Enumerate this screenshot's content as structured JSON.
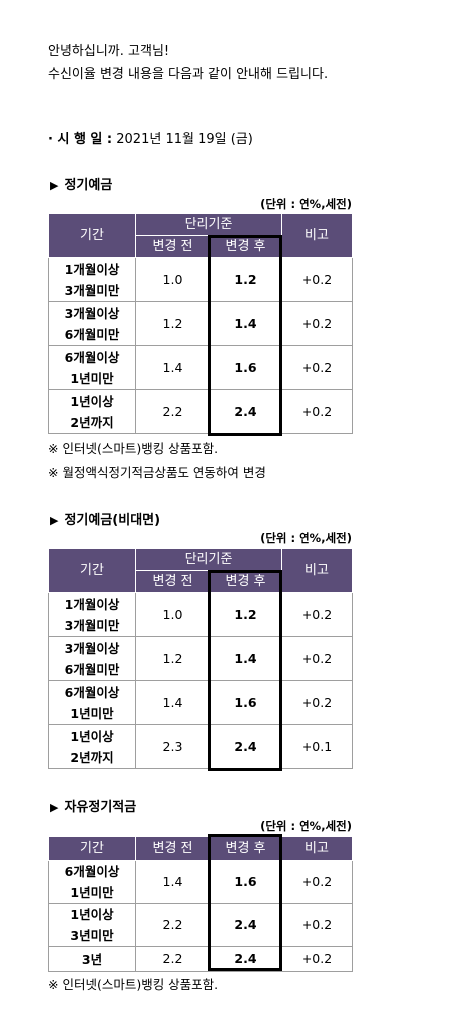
{
  "greeting": "안녕하십니까. 고객님!",
  "intro": "수신이율 변경 내용을 다음과 같이 안내해 드립니다.",
  "effective_date": {
    "label": "· 시 행 일 :",
    "value": "2021년 11월 19일 (금)"
  },
  "sections": [
    {
      "title": "정기예금",
      "unit": "(단위 : 연%,세전)",
      "headers": {
        "period": "기간",
        "group": "단리기준",
        "before": "변경 전",
        "after": "변경 후",
        "remark": "비고"
      },
      "rows": [
        {
          "p1": "1개월이상",
          "p2": "3개월미만",
          "before": "1.0",
          "after": "1.2",
          "remark": "+0.2"
        },
        {
          "p1": "3개월이상",
          "p2": "6개월미만",
          "before": "1.2",
          "after": "1.4",
          "remark": "+0.2"
        },
        {
          "p1": "6개월이상",
          "p2": "1년미만",
          "before": "1.4",
          "after": "1.6",
          "remark": "+0.2"
        },
        {
          "p1": "1년이상",
          "p2": "2년까지",
          "before": "2.2",
          "after": "2.4",
          "remark": "+0.2"
        }
      ],
      "notes": [
        "※ 인터넷(스마트)뱅킹 상품포함.",
        "※ 월정액식정기적금상품도 연동하여 변경"
      ]
    },
    {
      "title": "정기예금(비대면)",
      "unit": "(단위 : 연%,세전)",
      "headers": {
        "period": "기간",
        "group": "단리기준",
        "before": "변경 전",
        "after": "변경 후",
        "remark": "비고"
      },
      "rows": [
        {
          "p1": "1개월이상",
          "p2": "3개월미만",
          "before": "1.0",
          "after": "1.2",
          "remark": "+0.2"
        },
        {
          "p1": "3개월이상",
          "p2": "6개월미만",
          "before": "1.2",
          "after": "1.4",
          "remark": "+0.2"
        },
        {
          "p1": "6개월이상",
          "p2": "1년미만",
          "before": "1.4",
          "after": "1.6",
          "remark": "+0.2"
        },
        {
          "p1": "1년이상",
          "p2": "2년까지",
          "before": "2.3",
          "after": "2.4",
          "remark": "+0.1"
        }
      ]
    },
    {
      "title": "자유정기적금",
      "unit": "(단위 : 연%,세전)",
      "headers": {
        "period": "기간",
        "before": "변경 전",
        "after": "변경 후",
        "remark": "비고"
      },
      "rows": [
        {
          "p1": "6개월이상",
          "p2": "1년미만",
          "before": "1.4",
          "after": "1.6",
          "remark": "+0.2"
        },
        {
          "p1": "1년이상",
          "p2": "3년미만",
          "before": "2.2",
          "after": "2.4",
          "remark": "+0.2"
        },
        {
          "p1": "3년",
          "before": "2.2",
          "after": "2.4",
          "remark": "+0.2"
        }
      ],
      "notes": [
        "※ 인터넷(스마트)뱅킹 상품포함."
      ]
    }
  ]
}
